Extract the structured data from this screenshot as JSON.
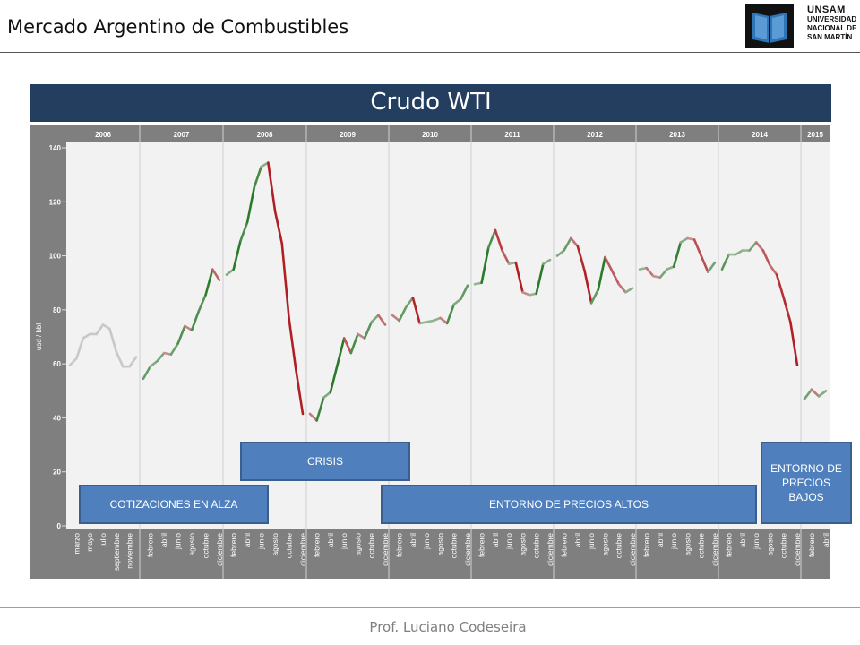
{
  "header": {
    "title": "Mercado Argentino de Combustibles"
  },
  "logo": {
    "line1": "UNSAM",
    "line2": "UNIVERSIDAD",
    "line3": "NACIONAL DE",
    "line4": "SAN MARTÍN"
  },
  "banner": {
    "title": "Crudo WTI"
  },
  "callouts": {
    "crisis": "CRISIS",
    "rising": "COTIZACIONES EN ALZA",
    "high": "ENTORNO DE PRECIOS ALTOS",
    "low": "ENTORNO DE PRECIOS BAJOS"
  },
  "footer": {
    "text": "Prof. Luciano Codeseira"
  },
  "colors": {
    "banner": "#243e60",
    "callout": "#4f80bd",
    "panel": "#7f7f7f",
    "plot_bg": "#f2f2f2",
    "up_strong": "#2a7a2a",
    "down_strong": "#b01f24",
    "neutral": "#c8c8c8"
  },
  "chart_data": {
    "type": "line",
    "title": "Crudo WTI",
    "xlabel": "",
    "ylabel": "usd / bbl",
    "ylim": [
      0,
      140
    ],
    "yticks": [
      0,
      20,
      40,
      60,
      80,
      100,
      120,
      140
    ],
    "grid": false,
    "years": [
      {
        "year": "2006",
        "months": [
          "marzo",
          "mayo",
          "julio",
          "septiembre",
          "noviembre"
        ],
        "values": [
          59.5,
          62,
          69.5,
          71,
          71,
          74.5,
          73,
          64.5,
          59,
          59,
          62.5
        ],
        "trend": "neutral"
      },
      {
        "year": "2007",
        "months": [
          "febrero",
          "abril",
          "junio",
          "agosto",
          "octubre",
          "diciembre"
        ],
        "values": [
          54.5,
          59,
          61,
          64,
          63.5,
          67.5,
          74,
          72.5,
          79.5,
          85.5,
          95,
          91
        ],
        "trend": "up"
      },
      {
        "year": "2008",
        "months": [
          "febrero",
          "abril",
          "junio",
          "agosto",
          "octubre",
          "diciembre"
        ],
        "values": [
          93,
          95,
          105.5,
          112.5,
          125.5,
          133,
          134.5,
          116.5,
          104.5,
          77,
          58,
          41.5
        ],
        "trend": "down"
      },
      {
        "year": "2009",
        "months": [
          "febrero",
          "abril",
          "junio",
          "agosto",
          "octubre",
          "diciembre"
        ],
        "values": [
          41.5,
          39,
          47.5,
          49.5,
          59.5,
          69.5,
          64,
          71,
          69.5,
          75.5,
          78,
          74.5
        ],
        "trend": "up"
      },
      {
        "year": "2010",
        "months": [
          "febrero",
          "abril",
          "junio",
          "agosto",
          "octubre",
          "diciembre"
        ],
        "values": [
          78,
          76,
          81,
          84.5,
          75,
          75.5,
          76,
          77,
          75,
          82,
          84,
          89
        ],
        "trend": "up"
      },
      {
        "year": "2011",
        "months": [
          "febrero",
          "abril",
          "junio",
          "agosto",
          "octubre",
          "diciembre"
        ],
        "values": [
          89.5,
          90,
          103,
          109.5,
          102,
          97,
          97.5,
          86.5,
          85.5,
          86,
          97,
          98.5
        ],
        "trend": "up"
      },
      {
        "year": "2012",
        "months": [
          "febrero",
          "abril",
          "junio",
          "agosto",
          "octubre",
          "diciembre"
        ],
        "values": [
          100,
          102,
          106.5,
          103.5,
          94.5,
          82.5,
          87.5,
          99.5,
          94.5,
          89.5,
          86.5,
          88
        ],
        "trend": "mixed"
      },
      {
        "year": "2013",
        "months": [
          "febrero",
          "abril",
          "junio",
          "agosto",
          "octubre",
          "diciembre"
        ],
        "values": [
          95,
          95.5,
          92.5,
          92,
          95,
          96,
          105,
          106.5,
          106,
          100,
          94,
          97.5
        ],
        "trend": "up"
      },
      {
        "year": "2014",
        "months": [
          "febrero",
          "abril",
          "junio",
          "agosto",
          "octubre",
          "diciembre"
        ],
        "values": [
          95,
          100.5,
          100.5,
          102,
          102,
          105,
          102,
          96.5,
          93,
          84.5,
          75.5,
          59.5
        ],
        "trend": "down"
      },
      {
        "year": "2015",
        "months": [
          "febrero",
          "abril"
        ],
        "values": [
          47,
          50.5,
          48,
          50
        ],
        "trend": "down"
      }
    ]
  }
}
